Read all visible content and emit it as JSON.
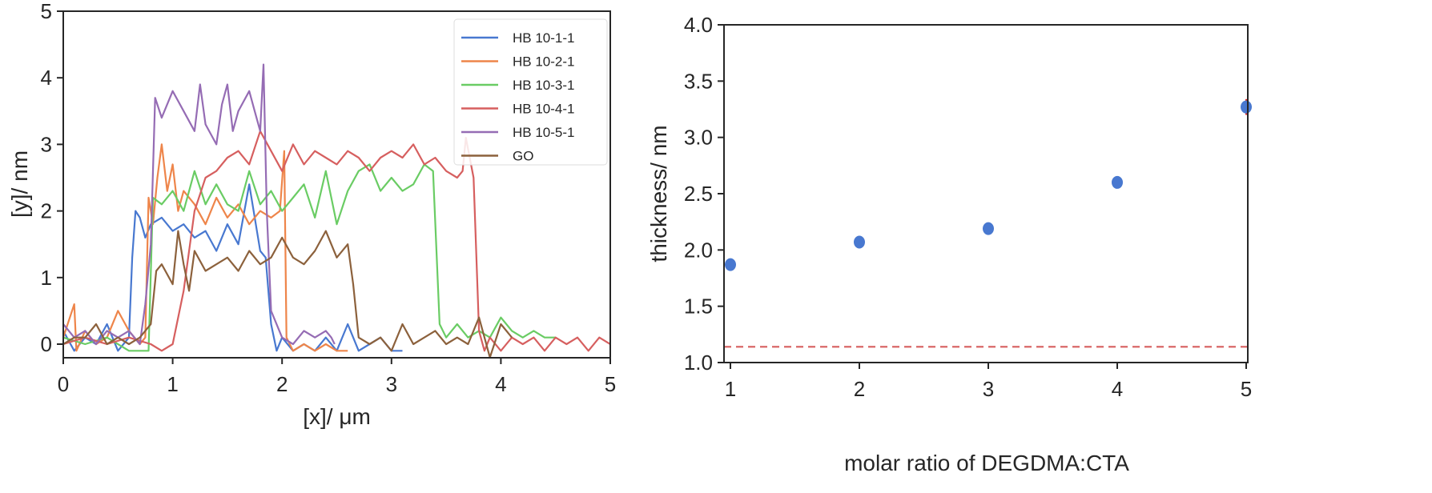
{
  "chart_data": [
    {
      "type": "line",
      "xlabel": "[x]/ μm",
      "ylabel": "[y]/ nm",
      "xlim": [
        0,
        5
      ],
      "ylim": [
        -0.2,
        5
      ],
      "xticks": [
        "0",
        "1",
        "2",
        "3",
        "4",
        "5"
      ],
      "yticks": [
        "0",
        "1",
        "2",
        "3",
        "4",
        "5"
      ],
      "grid": false,
      "legend_position": "top-right",
      "series": [
        {
          "name": "HB 10-1-1",
          "color": "#4878d0",
          "points": [
            [
              0,
              0.2
            ],
            [
              0.1,
              -0.1
            ],
            [
              0.2,
              0.1
            ],
            [
              0.3,
              0
            ],
            [
              0.4,
              0.3
            ],
            [
              0.5,
              -0.1
            ],
            [
              0.6,
              0.1
            ],
            [
              0.63,
              1.3
            ],
            [
              0.66,
              2.0
            ],
            [
              0.7,
              1.9
            ],
            [
              0.75,
              1.6
            ],
            [
              0.8,
              1.8
            ],
            [
              0.9,
              1.9
            ],
            [
              1.0,
              1.7
            ],
            [
              1.1,
              1.8
            ],
            [
              1.2,
              1.6
            ],
            [
              1.3,
              1.7
            ],
            [
              1.4,
              1.4
            ],
            [
              1.5,
              1.8
            ],
            [
              1.6,
              1.5
            ],
            [
              1.7,
              2.4
            ],
            [
              1.8,
              1.4
            ],
            [
              1.85,
              1.3
            ],
            [
              1.9,
              0.3
            ],
            [
              1.95,
              -0.1
            ],
            [
              2.0,
              0.1
            ],
            [
              2.1,
              -0.1
            ],
            [
              2.2,
              0
            ],
            [
              2.3,
              -0.1
            ],
            [
              2.4,
              0.1
            ],
            [
              2.5,
              -0.1
            ],
            [
              2.6,
              0.3
            ],
            [
              2.7,
              -0.1
            ],
            [
              2.8,
              0
            ],
            [
              2.9,
              0.1
            ],
            [
              3.0,
              -0.1
            ],
            [
              3.1,
              -0.1
            ]
          ]
        },
        {
          "name": "HB 10-2-1",
          "color": "#ee854a",
          "points": [
            [
              0,
              0.1
            ],
            [
              0.1,
              0.6
            ],
            [
              0.12,
              -0.1
            ],
            [
              0.2,
              0.2
            ],
            [
              0.3,
              0
            ],
            [
              0.4,
              0.1
            ],
            [
              0.5,
              0.5
            ],
            [
              0.6,
              0.2
            ],
            [
              0.7,
              0
            ],
            [
              0.75,
              0.1
            ],
            [
              0.78,
              2.2
            ],
            [
              0.82,
              1.8
            ],
            [
              0.86,
              2.5
            ],
            [
              0.9,
              3.0
            ],
            [
              0.95,
              2.3
            ],
            [
              1.0,
              2.7
            ],
            [
              1.05,
              2.0
            ],
            [
              1.1,
              2.3
            ],
            [
              1.2,
              2.1
            ],
            [
              1.3,
              1.8
            ],
            [
              1.4,
              2.2
            ],
            [
              1.5,
              1.9
            ],
            [
              1.6,
              2.1
            ],
            [
              1.7,
              1.8
            ],
            [
              1.8,
              2.0
            ],
            [
              1.9,
              1.9
            ],
            [
              1.98,
              2.0
            ],
            [
              2.02,
              2.9
            ],
            [
              2.04,
              0.1
            ],
            [
              2.1,
              -0.1
            ],
            [
              2.2,
              0
            ],
            [
              2.3,
              -0.1
            ],
            [
              2.4,
              0
            ],
            [
              2.5,
              -0.1
            ],
            [
              2.6,
              -0.1
            ]
          ]
        },
        {
          "name": "HB 10-3-1",
          "color": "#6acc64",
          "points": [
            [
              0,
              0.1
            ],
            [
              0.2,
              0
            ],
            [
              0.4,
              0.1
            ],
            [
              0.6,
              -0.1
            ],
            [
              0.78,
              -0.1
            ],
            [
              0.82,
              2.2
            ],
            [
              0.9,
              2.1
            ],
            [
              1.0,
              2.3
            ],
            [
              1.1,
              2.0
            ],
            [
              1.2,
              2.6
            ],
            [
              1.3,
              2.1
            ],
            [
              1.4,
              2.4
            ],
            [
              1.5,
              2.1
            ],
            [
              1.6,
              2.0
            ],
            [
              1.7,
              2.6
            ],
            [
              1.8,
              2.1
            ],
            [
              1.9,
              2.3
            ],
            [
              2.0,
              2.0
            ],
            [
              2.1,
              2.2
            ],
            [
              2.2,
              2.4
            ],
            [
              2.3,
              1.9
            ],
            [
              2.4,
              2.6
            ],
            [
              2.5,
              1.8
            ],
            [
              2.6,
              2.3
            ],
            [
              2.7,
              2.6
            ],
            [
              2.8,
              2.7
            ],
            [
              2.9,
              2.3
            ],
            [
              3.0,
              2.5
            ],
            [
              3.1,
              2.3
            ],
            [
              3.2,
              2.4
            ],
            [
              3.3,
              2.7
            ],
            [
              3.38,
              2.6
            ],
            [
              3.44,
              0.3
            ],
            [
              3.5,
              0.1
            ],
            [
              3.6,
              0.3
            ],
            [
              3.7,
              0.1
            ],
            [
              3.8,
              0.2
            ],
            [
              3.9,
              0.1
            ],
            [
              4.0,
              0.4
            ],
            [
              4.1,
              0.2
            ],
            [
              4.2,
              0.1
            ],
            [
              4.3,
              0.2
            ],
            [
              4.4,
              0.1
            ],
            [
              4.5,
              0.1
            ]
          ]
        },
        {
          "name": "HB 10-4-1",
          "color": "#d65f5f",
          "points": [
            [
              0,
              0
            ],
            [
              0.2,
              0.1
            ],
            [
              0.4,
              0
            ],
            [
              0.6,
              0.1
            ],
            [
              0.8,
              0
            ],
            [
              0.9,
              -0.1
            ],
            [
              1.0,
              0
            ],
            [
              1.1,
              0.8
            ],
            [
              1.2,
              2.0
            ],
            [
              1.3,
              2.5
            ],
            [
              1.4,
              2.6
            ],
            [
              1.5,
              2.8
            ],
            [
              1.6,
              2.9
            ],
            [
              1.7,
              2.7
            ],
            [
              1.8,
              3.2
            ],
            [
              1.9,
              2.9
            ],
            [
              2.0,
              2.6
            ],
            [
              2.1,
              3.0
            ],
            [
              2.2,
              2.7
            ],
            [
              2.3,
              2.9
            ],
            [
              2.4,
              2.8
            ],
            [
              2.5,
              2.7
            ],
            [
              2.6,
              2.9
            ],
            [
              2.7,
              2.8
            ],
            [
              2.8,
              2.6
            ],
            [
              2.9,
              2.8
            ],
            [
              3.0,
              2.9
            ],
            [
              3.1,
              2.8
            ],
            [
              3.2,
              3.0
            ],
            [
              3.3,
              2.7
            ],
            [
              3.4,
              2.8
            ],
            [
              3.5,
              2.6
            ],
            [
              3.6,
              2.5
            ],
            [
              3.65,
              2.6
            ],
            [
              3.68,
              3.1
            ],
            [
              3.75,
              2.5
            ],
            [
              3.8,
              0.2
            ],
            [
              3.85,
              -0.1
            ],
            [
              3.9,
              0.1
            ],
            [
              4.0,
              -0.1
            ],
            [
              4.1,
              0.1
            ],
            [
              4.2,
              0
            ],
            [
              4.3,
              0.1
            ],
            [
              4.4,
              -0.1
            ],
            [
              4.5,
              0.1
            ],
            [
              4.6,
              0
            ],
            [
              4.7,
              0.1
            ],
            [
              4.8,
              -0.1
            ],
            [
              4.9,
              0.1
            ],
            [
              5.0,
              0
            ]
          ]
        },
        {
          "name": "HB 10-5-1",
          "color": "#956cb4",
          "points": [
            [
              0,
              0.3
            ],
            [
              0.1,
              0.1
            ],
            [
              0.2,
              0.2
            ],
            [
              0.3,
              0
            ],
            [
              0.4,
              0.2
            ],
            [
              0.5,
              0.1
            ],
            [
              0.6,
              0.2
            ],
            [
              0.7,
              0
            ],
            [
              0.75,
              0.6
            ],
            [
              0.8,
              1.5
            ],
            [
              0.84,
              3.7
            ],
            [
              0.9,
              3.4
            ],
            [
              1.0,
              3.8
            ],
            [
              1.1,
              3.5
            ],
            [
              1.2,
              3.2
            ],
            [
              1.25,
              3.9
            ],
            [
              1.3,
              3.3
            ],
            [
              1.4,
              3.0
            ],
            [
              1.45,
              3.6
            ],
            [
              1.5,
              3.9
            ],
            [
              1.55,
              3.2
            ],
            [
              1.6,
              3.5
            ],
            [
              1.7,
              3.8
            ],
            [
              1.75,
              3.5
            ],
            [
              1.8,
              3.2
            ],
            [
              1.83,
              4.2
            ],
            [
              1.86,
              2.0
            ],
            [
              1.9,
              0.5
            ],
            [
              2.0,
              0.1
            ],
            [
              2.1,
              0
            ],
            [
              2.2,
              0.2
            ],
            [
              2.3,
              0.1
            ],
            [
              2.4,
              0.2
            ],
            [
              2.45,
              0.1
            ],
            [
              2.48,
              0
            ]
          ]
        },
        {
          "name": "GO",
          "color": "#8c613c",
          "points": [
            [
              0,
              0
            ],
            [
              0.1,
              0.1
            ],
            [
              0.2,
              0.1
            ],
            [
              0.3,
              0.3
            ],
            [
              0.4,
              0
            ],
            [
              0.5,
              0.1
            ],
            [
              0.6,
              0
            ],
            [
              0.7,
              0.1
            ],
            [
              0.8,
              0.3
            ],
            [
              0.85,
              1.1
            ],
            [
              0.9,
              1.2
            ],
            [
              1.0,
              0.9
            ],
            [
              1.05,
              1.7
            ],
            [
              1.1,
              1.2
            ],
            [
              1.15,
              0.8
            ],
            [
              1.2,
              1.4
            ],
            [
              1.3,
              1.1
            ],
            [
              1.4,
              1.2
            ],
            [
              1.5,
              1.3
            ],
            [
              1.6,
              1.1
            ],
            [
              1.7,
              1.4
            ],
            [
              1.8,
              1.2
            ],
            [
              1.9,
              1.3
            ],
            [
              2.0,
              1.6
            ],
            [
              2.1,
              1.3
            ],
            [
              2.2,
              1.2
            ],
            [
              2.3,
              1.4
            ],
            [
              2.4,
              1.7
            ],
            [
              2.5,
              1.3
            ],
            [
              2.6,
              1.5
            ],
            [
              2.65,
              0.9
            ],
            [
              2.7,
              0.1
            ],
            [
              2.8,
              0
            ],
            [
              2.9,
              0.1
            ],
            [
              3.0,
              -0.1
            ],
            [
              3.1,
              0.3
            ],
            [
              3.2,
              0
            ],
            [
              3.3,
              0.1
            ],
            [
              3.4,
              0.2
            ],
            [
              3.5,
              0
            ],
            [
              3.6,
              0.1
            ],
            [
              3.7,
              0
            ],
            [
              3.8,
              0.4
            ],
            [
              3.9,
              -0.2
            ],
            [
              4.0,
              0.3
            ],
            [
              4.1,
              0.1
            ]
          ]
        }
      ]
    },
    {
      "type": "scatter",
      "xlabel": "molar ratio of DEGDMA:CTA",
      "ylabel": "thickness/ nm",
      "xlim": [
        1,
        5
      ],
      "ylim": [
        1.0,
        4.0
      ],
      "xticks": [
        "1",
        "2",
        "3",
        "4",
        "5"
      ],
      "yticks": [
        "1.0",
        "1.5",
        "2.0",
        "2.5",
        "3.0",
        "3.5",
        "4.0"
      ],
      "grid": false,
      "point_color": "#4878d0",
      "errorbar_color": "#d62728",
      "x": [
        1,
        2,
        3,
        4,
        5
      ],
      "y": [
        1.87,
        2.07,
        2.19,
        2.6,
        3.27
      ],
      "yerr": [
        0.02,
        0.02,
        0.03,
        0.02,
        0.07
      ],
      "reference_line": {
        "y": 1.14,
        "style": "dashed",
        "color": "#d65f5f"
      }
    }
  ]
}
